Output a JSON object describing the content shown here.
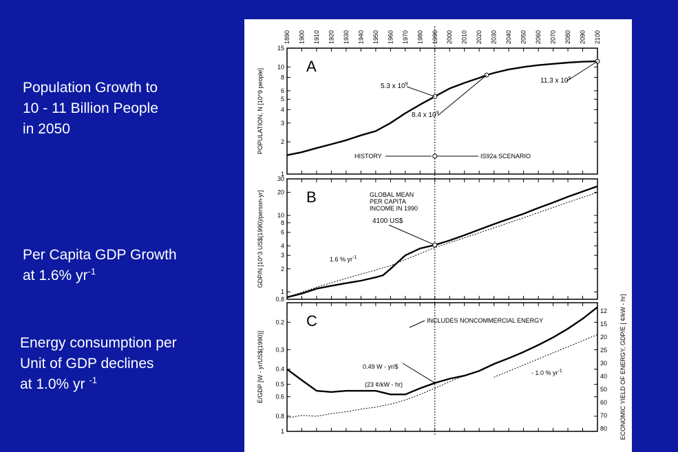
{
  "captions": {
    "population": {
      "line1": "Population Growth to",
      "line2": "10 - 11 Billion People",
      "line3": "in 2050"
    },
    "gdp": {
      "line1": "Per Capita GDP Growth",
      "line2_pre": "at 1.6% yr",
      "line2_sup": "-1"
    },
    "energy": {
      "line1": "Energy consumption per",
      "line2": "Unit of GDP declines",
      "line3_pre": "at 1.0% yr ",
      "line3_sup": "-1"
    }
  },
  "chart_data": [
    {
      "panel": "A",
      "type": "line",
      "x_ticks": [
        "1890",
        "1900",
        "1910",
        "1920",
        "1930",
        "1940",
        "1950",
        "1960",
        "1970",
        "1980",
        "1990",
        "2000",
        "2010",
        "2020",
        "2030",
        "2040",
        "2050",
        "2060",
        "2070",
        "2080",
        "2090",
        "2100"
      ],
      "ylabel": "POPULATION, N [10^9 people]",
      "y_ticks": [
        1,
        2,
        3,
        4,
        5,
        6,
        8,
        10,
        15
      ],
      "ylim": [
        1,
        15
      ],
      "yscale": "log",
      "series": [
        {
          "x": [
            1890,
            1900,
            1910,
            1920,
            1930,
            1940,
            1950,
            1960,
            1970,
            1980,
            1990,
            2000,
            2010,
            2020,
            2025,
            2030,
            2040,
            2050,
            2060,
            2070,
            2080,
            2090,
            2100
          ],
          "values": [
            1.5,
            1.6,
            1.75,
            1.9,
            2.07,
            2.3,
            2.52,
            3.0,
            3.7,
            4.45,
            5.3,
            6.3,
            7.1,
            7.9,
            8.4,
            8.8,
            9.5,
            10.0,
            10.4,
            10.7,
            11.0,
            11.2,
            11.3
          ]
        }
      ],
      "annotations": [
        {
          "x": 1990,
          "y": 5.3,
          "text": "5.3 x 10",
          "sup": "9"
        },
        {
          "x": 2025,
          "y": 8.4,
          "text": "8.4 x 10",
          "sup": "9"
        },
        {
          "x": 2100,
          "y": 11.3,
          "text": "11.3 x 10",
          "sup": "9"
        }
      ],
      "scenario": {
        "history": "HISTORY",
        "scenario": "IS92a SCENARIO"
      },
      "panel_letter": "A"
    },
    {
      "panel": "B",
      "type": "line",
      "ylabel": "GDP/N [10^3 US$(1990)/person-yr]",
      "y_ticks": [
        0.8,
        1,
        2,
        3,
        4,
        6,
        8,
        10,
        20,
        30
      ],
      "ylim": [
        0.8,
        30
      ],
      "yscale": "log",
      "series": [
        {
          "x": [
            1890,
            1900,
            1910,
            1920,
            1930,
            1940,
            1950,
            1955,
            1960,
            1970,
            1980,
            1990,
            2000,
            2010,
            2020,
            2030,
            2040,
            2050,
            2060,
            2070,
            2080,
            2090,
            2100
          ],
          "values": [
            0.85,
            0.95,
            1.1,
            1.2,
            1.3,
            1.4,
            1.55,
            1.65,
            2.0,
            3.0,
            3.7,
            4.1,
            4.7,
            5.5,
            6.5,
            7.7,
            9.0,
            10.5,
            12.5,
            14.7,
            17.5,
            20.5,
            24.0
          ]
        },
        {
          "x": [
            1890,
            1910,
            1930,
            1960,
            1990,
            2020,
            2050,
            2080,
            2100
          ],
          "values": [
            0.85,
            1.15,
            1.5,
            2.2,
            3.8,
            5.9,
            9.3,
            14.8,
            20.0
          ]
        }
      ],
      "annotations": [
        {
          "text": "GLOBAL MEAN PER CAPITA INCOME IN 1990",
          "lines": [
            "GLOBAL MEAN",
            "PER CAPITA",
            "INCOME IN 1990"
          ]
        },
        {
          "x": 1990,
          "y": 4.1,
          "text": "4100 US$"
        },
        {
          "text": "1.6 % yr",
          "sup": "-1"
        }
      ],
      "panel_letter": "B"
    },
    {
      "panel": "C",
      "type": "line",
      "ylabel": "Ė/GDP [W - yr/US$(1990)]",
      "ylabel_right": "ECONOMIC YIELD OF ENERGY, GDP/Ė [ ¢/kW - hr]",
      "y_ticks": [
        0.2,
        0.3,
        0.4,
        0.5,
        0.6,
        0.8,
        1.0
      ],
      "y_ticks_right": [
        12,
        15,
        20,
        25,
        30,
        40,
        50,
        60,
        70,
        80
      ],
      "ylim": [
        0.15,
        1.0
      ],
      "yscale": "log",
      "y_inverted": true,
      "series": [
        {
          "x": [
            1890,
            1900,
            1910,
            1920,
            1930,
            1940,
            1950,
            1960,
            1970,
            1980,
            1990,
            2000,
            2010,
            2020,
            2030,
            2040,
            2050,
            2060,
            2070,
            2080,
            2090,
            2100
          ],
          "values": [
            0.4,
            0.47,
            0.55,
            0.56,
            0.55,
            0.55,
            0.55,
            0.58,
            0.58,
            0.53,
            0.49,
            0.46,
            0.44,
            0.41,
            0.37,
            0.34,
            0.31,
            0.28,
            0.25,
            0.22,
            0.19,
            0.16
          ]
        },
        {
          "x": [
            1890,
            1900,
            1910,
            1920,
            1930,
            1940,
            1950,
            1960,
            1970,
            1980,
            1990,
            2000,
            2010
          ],
          "values": [
            0.82,
            0.79,
            0.8,
            0.77,
            0.75,
            0.72,
            0.7,
            0.67,
            0.63,
            0.58,
            0.53,
            0.48,
            0.44
          ]
        },
        {
          "x": [
            2030,
            2100
          ],
          "values": [
            0.45,
            0.24
          ]
        }
      ],
      "annotations": [
        {
          "text": "INCLUDES NONCOMMERCIAL ENERGY"
        },
        {
          "text": "0.49 W - yr/$"
        },
        {
          "text": "(23 ¢/kW - hr)"
        },
        {
          "text": "- 1.0 % yr",
          "sup": "-1"
        }
      ],
      "panel_letter": "C"
    }
  ]
}
